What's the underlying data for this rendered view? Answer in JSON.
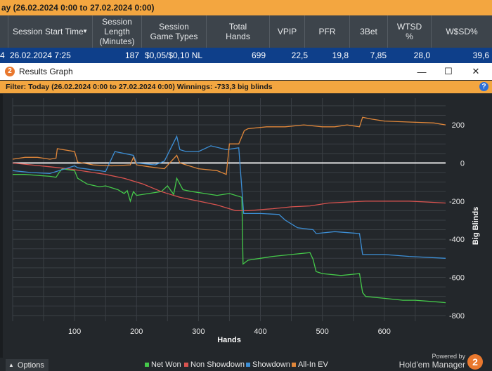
{
  "background_app": {
    "filter_text": "ay (26.02.2024 0:00 to 27.02.2024 0:00)",
    "columns": [
      {
        "label": "Session Start Time",
        "sort": "chevron-down-icon"
      },
      {
        "label": "Session Length (Minutes)"
      },
      {
        "label": "Session Game Types"
      },
      {
        "label": "Total Hands"
      },
      {
        "label": "VPIP"
      },
      {
        "label": "PFR"
      },
      {
        "label": "3Bet"
      },
      {
        "label": "WTSD %"
      },
      {
        "label": "W$SD%"
      }
    ],
    "row": {
      "index": "4",
      "start_time": "26.02.2024 7:25",
      "length": "187",
      "game_types": "$0,05/$0,10 NL",
      "total_hands": "699",
      "vpip": "22,5",
      "pfr": "19,8",
      "threebet": "7,85",
      "wtsd": "28,0",
      "wsd": "39,6"
    }
  },
  "window": {
    "title": "Results Graph",
    "app_icon_text": "2",
    "controls": {
      "minimize": "—",
      "maximize": "☐",
      "close": "✕"
    },
    "filter_text": "Filter: Today (26.02.2024 0:00 to 27.02.2024 0:00)  Winnings: -733,3 big blinds",
    "help_icon": "?"
  },
  "chart_data": {
    "type": "line",
    "xlabel": "Hands",
    "ylabel": "Big Blinds",
    "xlim": [
      0,
      699
    ],
    "ylim": [
      -830,
      340
    ],
    "x_ticks": [
      100,
      200,
      300,
      400,
      500,
      600
    ],
    "y_ticks": [
      200,
      0,
      -200,
      -400,
      -600,
      -800
    ],
    "zero_line": true,
    "grid": true,
    "legend_position": "bottom",
    "colors": {
      "Net Won": "#45c94a",
      "Non Showdown": "#d9534f",
      "Showdown": "#3d8fd6",
      "All-In EV": "#e0873a"
    },
    "series": [
      {
        "name": "Net Won",
        "x": [
          0,
          20,
          40,
          60,
          70,
          75,
          80,
          100,
          105,
          120,
          140,
          150,
          170,
          180,
          185,
          190,
          195,
          200,
          220,
          240,
          250,
          260,
          265,
          275,
          290,
          310,
          330,
          350,
          370,
          372,
          380,
          400,
          420,
          450,
          480,
          485,
          490,
          500,
          530,
          560,
          565,
          570,
          600,
          630,
          650,
          690,
          699
        ],
        "y": [
          -60,
          -60,
          -65,
          -70,
          -75,
          -50,
          -30,
          -40,
          -80,
          -110,
          -125,
          -120,
          -140,
          -160,
          -145,
          -200,
          -150,
          -170,
          -160,
          -150,
          -120,
          -165,
          -80,
          -140,
          -150,
          -160,
          -170,
          -160,
          -180,
          -530,
          -510,
          -500,
          -490,
          -480,
          -470,
          -505,
          -570,
          -580,
          -590,
          -580,
          -680,
          -700,
          -710,
          -720,
          -720,
          -730,
          -733
        ]
      },
      {
        "name": "Non Showdown",
        "x": [
          0,
          30,
          60,
          90,
          120,
          150,
          180,
          210,
          240,
          270,
          300,
          330,
          360,
          380,
          420,
          450,
          480,
          510,
          540,
          570,
          600,
          640,
          670,
          699
        ],
        "y": [
          0,
          -10,
          -20,
          -30,
          -45,
          -60,
          -80,
          -110,
          -150,
          -180,
          -200,
          -220,
          -250,
          -250,
          -240,
          -230,
          -225,
          -210,
          -205,
          -200,
          -200,
          -200,
          -205,
          -210
        ]
      },
      {
        "name": "Showdown",
        "x": [
          0,
          30,
          60,
          100,
          105,
          150,
          165,
          195,
          200,
          230,
          245,
          265,
          270,
          280,
          300,
          320,
          345,
          365,
          373,
          380,
          400,
          430,
          440,
          460,
          485,
          490,
          520,
          560,
          565,
          600,
          640,
          699
        ],
        "y": [
          -40,
          -50,
          -55,
          -15,
          -25,
          -45,
          60,
          40,
          0,
          -10,
          10,
          140,
          70,
          60,
          60,
          90,
          70,
          80,
          -265,
          -265,
          -265,
          -270,
          -300,
          -340,
          -350,
          -370,
          -360,
          -370,
          -480,
          -480,
          -490,
          -500
        ]
      },
      {
        "name": "All-In EV",
        "x": [
          0,
          20,
          40,
          60,
          70,
          72,
          100,
          105,
          130,
          160,
          190,
          195,
          200,
          220,
          245,
          265,
          270,
          300,
          330,
          345,
          350,
          365,
          374,
          380,
          410,
          440,
          470,
          500,
          520,
          540,
          560,
          565,
          580,
          600,
          640,
          680,
          699
        ],
        "y": [
          20,
          30,
          30,
          20,
          25,
          75,
          60,
          5,
          -10,
          -15,
          -10,
          30,
          -10,
          -20,
          -30,
          40,
          0,
          -30,
          -40,
          -60,
          100,
          100,
          170,
          180,
          190,
          190,
          200,
          190,
          190,
          200,
          190,
          240,
          230,
          220,
          215,
          210,
          200
        ]
      }
    ]
  },
  "legend": [
    {
      "name": "Net Won",
      "color": "#45c94a"
    },
    {
      "name": "Non Showdown",
      "color": "#d9534f"
    },
    {
      "name": "Showdown",
      "color": "#3d8fd6"
    },
    {
      "name": "All-In EV",
      "color": "#e0873a"
    }
  ],
  "footer": {
    "options_label": "Options",
    "options_icon": "chevron-up-icon",
    "powered_by": "Powered by",
    "brand": "Hold'em Manager",
    "brand_icon_text": "2"
  }
}
